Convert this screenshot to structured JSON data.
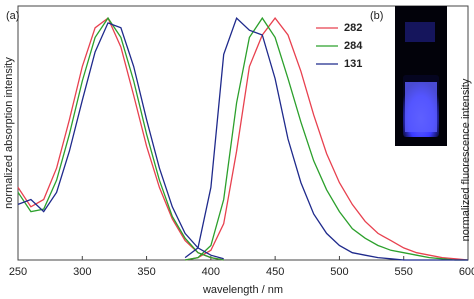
{
  "chart_data": {
    "type": "line",
    "panel_labels": [
      "(a)",
      "(b)"
    ],
    "xlabel": "wavelength / nm",
    "ylabel": "normalized absorption intensity",
    "y2label": "normalized fluorescence intensity",
    "x": [
      250,
      260,
      270,
      280,
      290,
      300,
      310,
      320,
      330,
      340,
      350,
      360,
      370,
      380,
      390,
      400,
      410,
      420,
      430,
      440,
      450,
      460,
      470,
      480,
      490,
      500,
      510,
      520,
      530,
      540,
      550,
      560,
      570,
      580,
      590,
      600
    ],
    "xlim": [
      250,
      600
    ],
    "xticks": [
      250,
      300,
      350,
      400,
      450,
      500,
      550,
      600
    ],
    "ylim": [
      0,
      1.05
    ],
    "legend": "upper right",
    "series": [
      {
        "name": "282",
        "color": "#e8414f",
        "values": [
          0.3,
          0.22,
          0.25,
          0.38,
          0.58,
          0.8,
          0.96,
          1.0,
          0.88,
          0.68,
          0.47,
          0.3,
          0.17,
          0.08,
          0.03,
          0.01,
          0.0,
          null,
          null,
          null,
          null,
          null,
          null,
          null,
          null,
          null,
          null,
          null,
          null,
          null,
          null,
          null,
          null,
          null,
          null,
          null
        ],
        "emission": [
          null,
          null,
          null,
          null,
          null,
          null,
          null,
          null,
          null,
          null,
          null,
          null,
          null,
          0,
          0.01,
          0.04,
          0.15,
          0.45,
          0.8,
          0.93,
          1.0,
          0.93,
          0.78,
          0.6,
          0.44,
          0.32,
          0.23,
          0.16,
          0.11,
          0.08,
          0.05,
          0.03,
          0.02,
          0.01,
          0.005,
          0
        ]
      },
      {
        "name": "284",
        "color": "#2ca02c",
        "values": [
          0.28,
          0.2,
          0.21,
          0.33,
          0.52,
          0.74,
          0.92,
          1.0,
          0.92,
          0.74,
          0.52,
          0.33,
          0.18,
          0.09,
          0.03,
          0.01,
          0.0,
          null,
          null,
          null,
          null,
          null,
          null,
          null,
          null,
          null,
          null,
          null,
          null,
          null,
          null,
          null,
          null,
          null,
          null,
          null
        ],
        "emission": [
          null,
          null,
          null,
          null,
          null,
          null,
          null,
          null,
          null,
          null,
          null,
          null,
          null,
          0,
          0.01,
          0.06,
          0.25,
          0.65,
          0.92,
          1.0,
          0.92,
          0.75,
          0.57,
          0.41,
          0.29,
          0.2,
          0.13,
          0.09,
          0.06,
          0.04,
          0.03,
          0.02,
          0.01,
          0.005,
          0,
          0
        ]
      },
      {
        "name": "131",
        "color": "#1f2a8c",
        "values": [
          0.23,
          0.25,
          0.2,
          0.28,
          0.45,
          0.66,
          0.86,
          0.98,
          0.96,
          0.8,
          0.58,
          0.38,
          0.22,
          0.11,
          0.05,
          0.02,
          0.005,
          null,
          null,
          null,
          null,
          null,
          null,
          null,
          null,
          null,
          null,
          null,
          null,
          null,
          null,
          null,
          null,
          null,
          null,
          null
        ],
        "emission": [
          null,
          null,
          null,
          null,
          null,
          null,
          null,
          null,
          null,
          null,
          null,
          null,
          null,
          0.01,
          0.05,
          0.3,
          0.85,
          1.0,
          0.95,
          0.93,
          0.75,
          0.5,
          0.32,
          0.19,
          0.11,
          0.06,
          0.03,
          0.02,
          0.01,
          0.005,
          0,
          0,
          0,
          0,
          0,
          0
        ]
      }
    ]
  }
}
